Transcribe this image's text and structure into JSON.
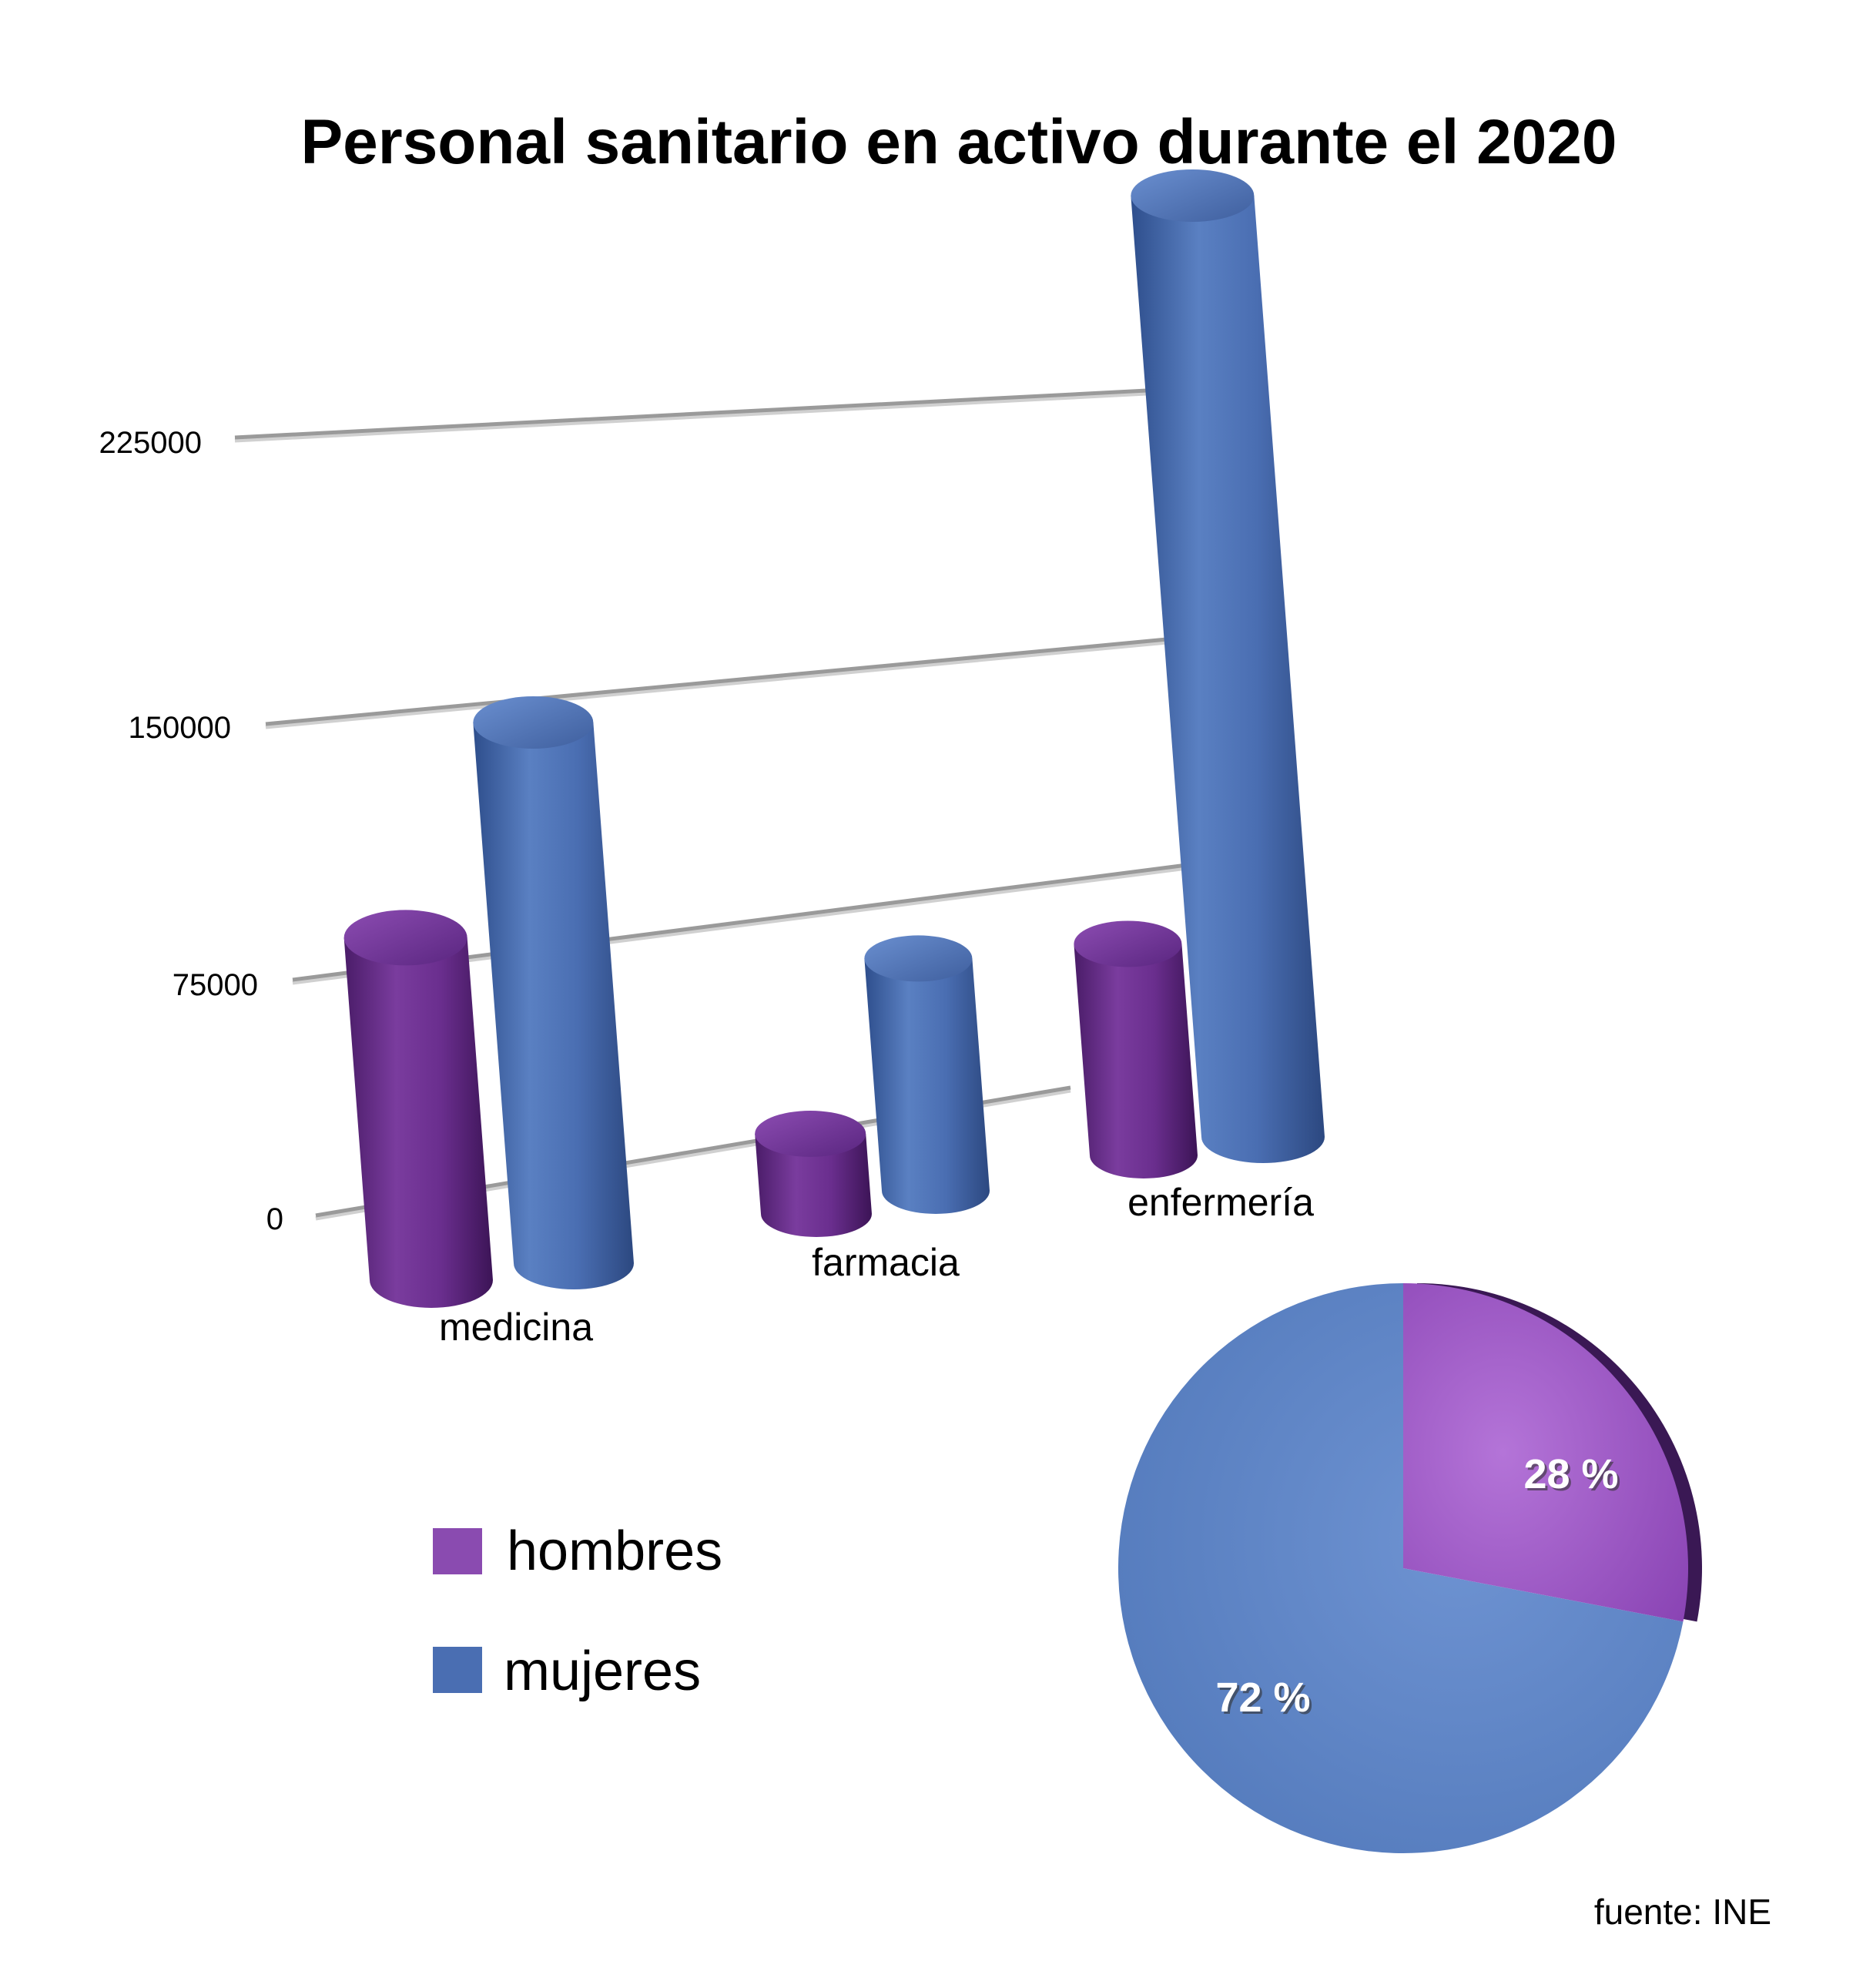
{
  "title": "Personal sanitario en activo durante el 2020",
  "source": "fuente: INE",
  "colors": {
    "hombres": "#7a3c9e",
    "mujeres": "#4f74b8",
    "grid": "#9a9a9a",
    "pie_hombres": "#9850c2",
    "pie_mujeres": "#5b82c4"
  },
  "chart_data": [
    {
      "type": "bar",
      "style": "3d-cylinder",
      "categories": [
        "medicina",
        "farmacia",
        "enfermería"
      ],
      "series": [
        {
          "name": "hombres",
          "values": [
            90000,
            20000,
            48000
          ]
        },
        {
          "name": "mujeres",
          "values": [
            135000,
            58000,
            235000
          ]
        }
      ],
      "y_ticks": [
        "0",
        "75000",
        "150000",
        "225000"
      ],
      "ylim": [
        0,
        225000
      ],
      "grid": true,
      "legend": "bottom-left"
    },
    {
      "type": "pie",
      "style": "3d",
      "slices": [
        {
          "name": "hombres",
          "value": 28,
          "label": "28 %"
        },
        {
          "name": "mujeres",
          "value": 72,
          "label": "72 %"
        }
      ]
    }
  ]
}
